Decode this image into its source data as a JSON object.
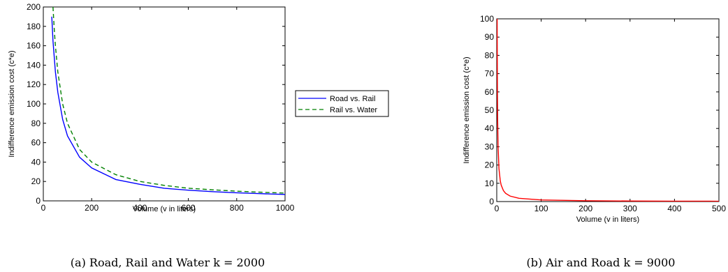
{
  "chart_data": [
    {
      "type": "line",
      "caption": "(a) Road, Rail and Water k = 2000",
      "xlabel": "Volume (v in liters)",
      "ylabel": "Indifference emission cost (c*e)",
      "xlim": [
        0,
        1000
      ],
      "ylim": [
        0,
        200
      ],
      "xticks": [
        "0",
        "200",
        "400",
        "600",
        "800",
        "1000"
      ],
      "yticks": [
        "0",
        "20",
        "40",
        "60",
        "80",
        "100",
        "120",
        "140",
        "160",
        "180",
        "200"
      ],
      "grid": false,
      "legend_placement": "outside-right",
      "series": [
        {
          "name": "Road vs. Rail",
          "color": "#0000ff",
          "style": "solid",
          "x": [
            35,
            40,
            50,
            60,
            80,
            100,
            150,
            200,
            300,
            400,
            500,
            600,
            700,
            800,
            900,
            1000
          ],
          "y": [
            190,
            165,
            133,
            112,
            84,
            67,
            45,
            34,
            22,
            17,
            13,
            11,
            9.5,
            8.3,
            7.4,
            6.6
          ]
        },
        {
          "name": "Rail vs. Water",
          "color": "#008000",
          "style": "dashed",
          "x": [
            40,
            45,
            50,
            60,
            80,
            100,
            150,
            200,
            300,
            400,
            500,
            600,
            700,
            800,
            900,
            1000
          ],
          "y": [
            200,
            178,
            160,
            133,
            100,
            80,
            53,
            40,
            27,
            20,
            16,
            13,
            11.4,
            10,
            8.9,
            8
          ]
        }
      ]
    },
    {
      "type": "line",
      "caption": "(b) Air and Road k = 9000",
      "xlabel": "Volume (v in liters)",
      "ylabel": "Indifference emission cost (c*e)",
      "xlim": [
        0,
        500
      ],
      "ylim": [
        0,
        100
      ],
      "xticks": [
        "0",
        "100",
        "200",
        "300",
        "400",
        "500"
      ],
      "yticks": [
        "0",
        "10",
        "20",
        "30",
        "40",
        "50",
        "60",
        "70",
        "80",
        "90",
        "100"
      ],
      "grid": false,
      "series": [
        {
          "color": "#ff0000",
          "style": "solid",
          "x": [
            0.9,
            1,
            1.5,
            2,
            3,
            5,
            8,
            10,
            15,
            20,
            30,
            50,
            100,
            200,
            300,
            400,
            500
          ],
          "y": [
            100,
            90,
            60,
            45,
            30,
            18,
            11.25,
            9,
            6,
            4.5,
            3,
            1.8,
            0.9,
            0.45,
            0.3,
            0.225,
            0.18
          ]
        }
      ]
    }
  ]
}
